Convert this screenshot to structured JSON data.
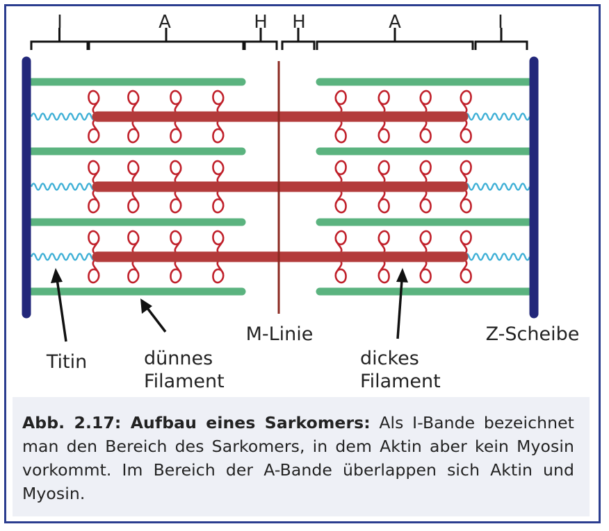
{
  "bands": [
    "I",
    "A",
    "H",
    "H",
    "A",
    "I"
  ],
  "labels": {
    "m_linie": "M-Linie",
    "z_scheibe": "Z-Scheibe",
    "titin": "Titin",
    "duennes_filament": [
      "dünnes",
      "Filament"
    ],
    "dickes_filament": [
      "dickes",
      "Filament"
    ]
  },
  "caption": {
    "title": "Abb. 2.17: Aufbau eines Sarkomers:",
    "text": "Als I-Bande bezeichnet man den Bereich des Sarkomers, in dem Aktin aber kein Myosin vorkommt. Im Bereich der A-Bande überlappen sich Aktin und Myosin."
  },
  "colors": {
    "frame": "#2b3d8f",
    "z_disc": "#22277a",
    "actin": "#5bb37f",
    "myosin": "#b33b3b",
    "myosin_head": "#c0202a",
    "titin": "#3fb0d6",
    "m_line": "#8b2a22",
    "caption_bg": "#eef0f6"
  }
}
